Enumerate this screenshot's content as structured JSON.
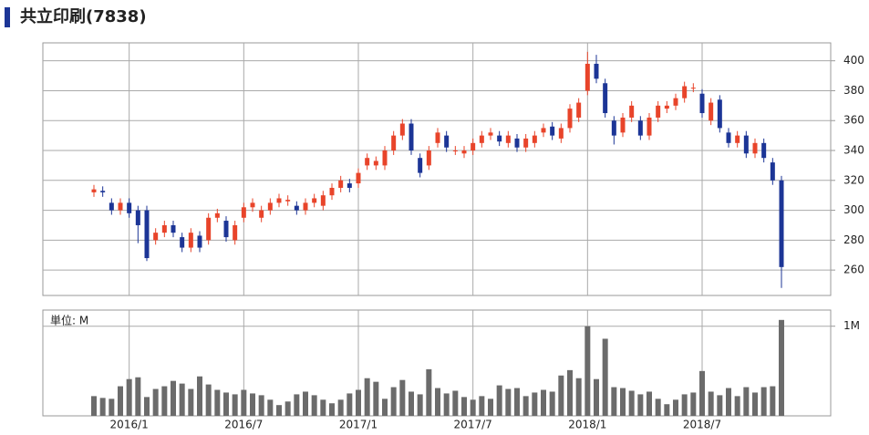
{
  "chart_data": [
    {
      "type": "candlestick",
      "title": "共立印刷(7838)",
      "open": [
        312,
        313,
        305,
        300,
        305,
        300,
        300,
        280,
        285,
        290,
        282,
        275,
        283,
        280,
        295,
        293,
        280,
        295,
        302,
        295,
        300,
        305,
        306,
        303,
        300,
        305,
        303,
        310,
        315,
        318,
        318,
        330,
        330,
        330,
        340,
        350,
        358,
        335,
        330,
        345,
        350,
        340,
        338,
        340,
        345,
        350,
        350,
        345,
        348,
        342,
        345,
        352,
        356,
        348,
        355,
        362,
        380,
        398,
        385,
        360,
        352,
        362,
        360,
        350,
        362,
        368,
        370,
        375,
        382,
        378,
        360,
        374,
        352,
        345,
        350,
        338,
        345,
        332,
        320
      ],
      "high": [
        317,
        316,
        308,
        308,
        308,
        303,
        303,
        288,
        293,
        293,
        285,
        288,
        286,
        298,
        301,
        296,
        293,
        305,
        308,
        303,
        308,
        311,
        310,
        306,
        308,
        311,
        313,
        318,
        323,
        321,
        328,
        338,
        336,
        343,
        353,
        361,
        361,
        338,
        343,
        355,
        353,
        343,
        343,
        348,
        353,
        355,
        353,
        353,
        351,
        351,
        353,
        358,
        359,
        358,
        371,
        375,
        406,
        404,
        388,
        363,
        365,
        373,
        363,
        365,
        373,
        373,
        378,
        386,
        385,
        381,
        375,
        377,
        355,
        353,
        353,
        348,
        348,
        335,
        323
      ],
      "low": [
        309,
        309,
        297,
        297,
        295,
        278,
        266,
        277,
        282,
        282,
        272,
        272,
        272,
        277,
        292,
        279,
        277,
        292,
        299,
        292,
        297,
        302,
        303,
        297,
        297,
        302,
        300,
        307,
        312,
        312,
        315,
        327,
        327,
        327,
        337,
        347,
        337,
        322,
        327,
        342,
        339,
        337,
        335,
        337,
        342,
        347,
        343,
        342,
        339,
        339,
        342,
        349,
        347,
        345,
        352,
        359,
        377,
        385,
        362,
        344,
        349,
        359,
        347,
        347,
        359,
        365,
        367,
        372,
        379,
        362,
        357,
        352,
        342,
        342,
        335,
        335,
        332,
        317,
        248
      ],
      "close": [
        314,
        312,
        300,
        305,
        298,
        290,
        268,
        285,
        290,
        285,
        275,
        285,
        275,
        295,
        298,
        282,
        290,
        302,
        305,
        300,
        305,
        308,
        307,
        300,
        305,
        308,
        310,
        315,
        320,
        315,
        325,
        335,
        333,
        340,
        350,
        358,
        340,
        325,
        340,
        352,
        342,
        340,
        340,
        345,
        350,
        352,
        346,
        350,
        342,
        348,
        350,
        355,
        350,
        355,
        368,
        372,
        398,
        388,
        365,
        350,
        362,
        370,
        350,
        362,
        370,
        370,
        375,
        383,
        382,
        365,
        372,
        355,
        345,
        350,
        338,
        345,
        335,
        320,
        262
      ],
      "up_color": "#e8442a",
      "down_color": "#1c3596",
      "ylim": [
        243,
        412
      ],
      "yticks": [
        260,
        280,
        300,
        320,
        340,
        360,
        380,
        400
      ],
      "grid": true
    },
    {
      "type": "bar",
      "y_label": "単位: M",
      "categories": [
        null,
        null,
        null,
        null,
        "2016/1",
        null,
        null,
        null,
        null,
        null,
        null,
        null,
        null,
        null,
        null,
        null,
        null,
        "2016/7",
        null,
        null,
        null,
        null,
        null,
        null,
        null,
        null,
        null,
        null,
        null,
        null,
        "2017/1",
        null,
        null,
        null,
        null,
        null,
        null,
        null,
        null,
        null,
        null,
        null,
        null,
        "2017/7",
        null,
        null,
        null,
        null,
        null,
        null,
        null,
        null,
        null,
        null,
        null,
        null,
        "2018/1",
        null,
        null,
        null,
        null,
        null,
        null,
        null,
        null,
        null,
        null,
        null,
        null,
        "2018/7",
        null,
        null,
        null,
        null,
        null,
        null,
        null,
        null,
        null
      ],
      "values": [
        220000,
        200000,
        190000,
        330000,
        410000,
        430000,
        210000,
        300000,
        330000,
        390000,
        360000,
        300000,
        440000,
        350000,
        290000,
        260000,
        240000,
        290000,
        250000,
        230000,
        180000,
        120000,
        160000,
        240000,
        270000,
        230000,
        180000,
        140000,
        180000,
        250000,
        290000,
        420000,
        380000,
        190000,
        320000,
        400000,
        270000,
        240000,
        520000,
        310000,
        250000,
        280000,
        210000,
        180000,
        220000,
        190000,
        340000,
        300000,
        310000,
        220000,
        260000,
        290000,
        270000,
        450000,
        510000,
        420000,
        1000000,
        410000,
        860000,
        320000,
        310000,
        280000,
        240000,
        270000,
        190000,
        130000,
        180000,
        240000,
        260000,
        500000,
        270000,
        230000,
        310000,
        220000,
        320000,
        260000,
        320000,
        330000,
        1070000
      ],
      "color": "#6b6b6b",
      "ylim": [
        0,
        1180000
      ],
      "yticks": [
        {
          "value": 1000000,
          "label": "1M"
        }
      ],
      "grid": true
    }
  ]
}
